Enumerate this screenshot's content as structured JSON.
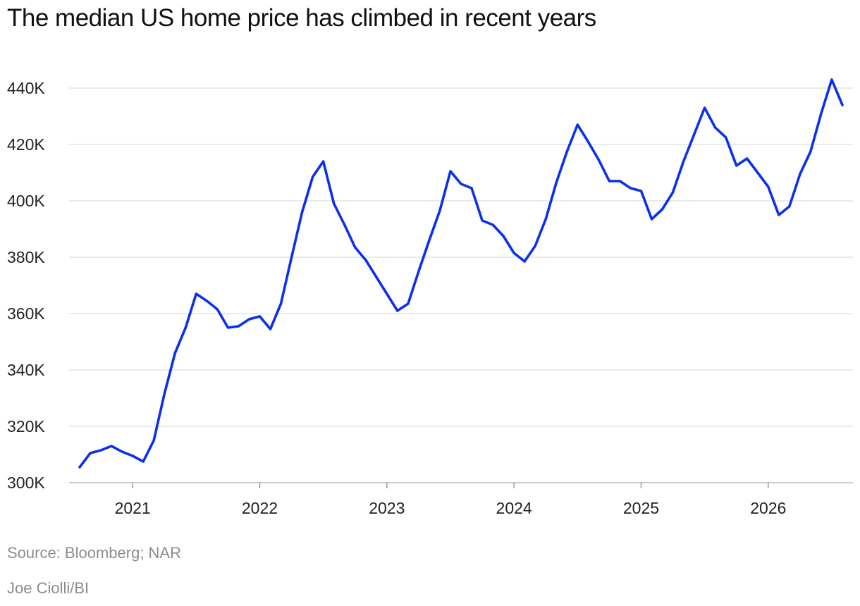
{
  "chart_data": {
    "type": "line",
    "title": "The median US home price has climbed in recent years",
    "xlabel": "",
    "ylabel": "",
    "y_ticks": [
      300000,
      320000,
      340000,
      360000,
      380000,
      400000,
      420000,
      440000
    ],
    "y_tick_labels": [
      "300K",
      "320K",
      "340K",
      "360K",
      "380K",
      "400K",
      "420K",
      "440K"
    ],
    "x_ticks": [
      "2021",
      "2022",
      "2023",
      "2024",
      "2025",
      "2026"
    ],
    "ylim": [
      300000,
      445000
    ],
    "xlim": [
      "2020-07",
      "2026-09"
    ],
    "grid": true,
    "legend": "none",
    "line_color": "#0a2ff0",
    "series": [
      {
        "x": [
          "2020-08",
          "2020-09",
          "2020-10",
          "2020-11",
          "2020-12",
          "2021-01",
          "2021-02",
          "2021-03",
          "2021-04",
          "2021-05",
          "2021-06",
          "2021-07",
          "2021-08",
          "2021-09",
          "2021-10",
          "2021-11",
          "2021-12",
          "2022-01",
          "2022-02",
          "2022-03",
          "2022-04",
          "2022-05",
          "2022-06",
          "2022-07",
          "2022-08",
          "2022-09",
          "2022-10",
          "2022-11",
          "2022-12",
          "2023-01",
          "2023-02",
          "2023-03",
          "2023-04",
          "2023-05",
          "2023-06",
          "2023-07",
          "2023-08",
          "2023-09",
          "2023-10",
          "2023-11",
          "2023-12",
          "2024-01",
          "2024-02",
          "2024-03",
          "2024-04",
          "2024-05",
          "2024-06",
          "2024-07",
          "2024-08",
          "2024-09",
          "2024-10",
          "2024-11",
          "2024-12",
          "2025-01",
          "2025-02",
          "2025-03",
          "2025-04",
          "2025-05",
          "2025-06",
          "2025-07",
          "2025-08",
          "2025-09",
          "2025-10",
          "2025-11",
          "2025-12",
          "2026-01",
          "2026-02",
          "2026-03",
          "2026-04",
          "2026-05",
          "2026-06",
          "2026-07",
          "2026-08"
        ],
        "values": [
          305500,
          310500,
          311500,
          313000,
          311000,
          309500,
          307500,
          315000,
          331500,
          346000,
          355000,
          367000,
          364500,
          361500,
          355000,
          355500,
          358000,
          359000,
          354500,
          363500,
          380000,
          396000,
          408500,
          414000,
          399000,
          391500,
          383500,
          379000,
          373000,
          367000,
          361000,
          363500,
          375000,
          386000,
          396500,
          410500,
          406000,
          404500,
          393000,
          391500,
          387500,
          381500,
          378500,
          384000,
          393500,
          406500,
          417500,
          427000,
          421000,
          414500,
          407000,
          407000,
          404500,
          403500,
          393500,
          397000,
          403000,
          414000,
          423500,
          433000,
          426000,
          422500,
          412500,
          415000,
          410000,
          405000,
          395000,
          398000,
          409500,
          417500,
          431000,
          443000,
          434000
        ]
      }
    ]
  },
  "footer": {
    "source": "Source: Bloomberg; NAR",
    "credit": "Joe Ciolli/BI"
  }
}
